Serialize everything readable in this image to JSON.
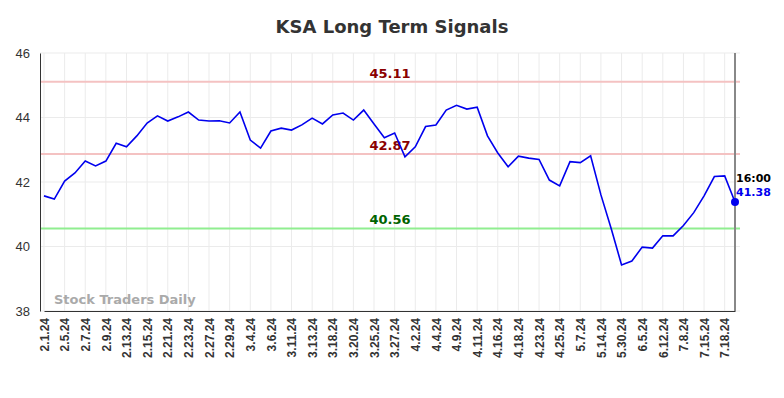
{
  "chart_data": {
    "type": "line",
    "title": "KSA Long Term Signals",
    "categories": [
      "2.1.24",
      null,
      "2.5.24",
      null,
      "2.7.24",
      null,
      "2.9.24",
      null,
      "2.13.24",
      null,
      "2.15.24",
      null,
      "2.21.24",
      null,
      "2.23.24",
      null,
      "2.27.24",
      null,
      "2.29.24",
      null,
      "3.4.24",
      null,
      "3.6.24",
      null,
      "3.11.24",
      null,
      "3.13.24",
      null,
      "3.18.24",
      null,
      "3.20.24",
      null,
      "3.25.24",
      null,
      "3.27.24",
      null,
      "4.2.24",
      null,
      "4.4.24",
      null,
      "4.9.24",
      null,
      "4.11.24",
      null,
      "4.16.24",
      null,
      "4.18.24",
      null,
      "4.23.24",
      null,
      "4.25.24",
      null,
      "5.7.24",
      null,
      "5.14.24",
      null,
      "5.30.24",
      null,
      "6.5.24",
      null,
      "6.12.24",
      null,
      "7.8.24",
      null,
      "7.15.24",
      null,
      "7.18.24",
      null
    ],
    "series": [
      {
        "name": "KSA",
        "color": "#0000ee",
        "values": [
          41.57,
          41.47,
          42.03,
          42.28,
          42.65,
          42.5,
          42.65,
          43.2,
          43.09,
          43.43,
          43.83,
          44.05,
          43.89,
          44.02,
          44.17,
          43.92,
          43.89,
          43.9,
          43.83,
          44.17,
          43.3,
          43.05,
          43.58,
          43.67,
          43.61,
          43.77,
          43.98,
          43.8,
          44.08,
          44.14,
          43.92,
          44.23,
          43.8,
          43.37,
          43.52,
          42.78,
          43.09,
          43.72,
          43.77,
          44.23,
          44.38,
          44.26,
          44.32,
          43.43,
          42.9,
          42.47,
          42.8,
          42.74,
          42.7,
          42.06,
          41.88,
          42.63,
          42.6,
          42.81,
          41.6,
          40.55,
          39.43,
          39.55,
          39.98,
          39.95,
          40.33,
          40.33,
          40.65,
          41.05,
          41.57,
          42.17,
          42.19,
          41.38
        ]
      }
    ],
    "reference_lines": [
      {
        "value": 45.11,
        "color": "#f4c2c2",
        "label_color": "#8b0000"
      },
      {
        "value": 42.87,
        "color": "#f4c2c2",
        "label_color": "#8b0000"
      },
      {
        "value": 40.56,
        "color": "#90ee90",
        "label_color": "#006400"
      }
    ],
    "annotations": [
      {
        "text": "16:00"
      },
      {
        "text": "Stock Traders Daily"
      }
    ],
    "ylim": [
      38,
      46
    ],
    "yticks": [
      38,
      40,
      42,
      44,
      46
    ],
    "grid": true
  }
}
